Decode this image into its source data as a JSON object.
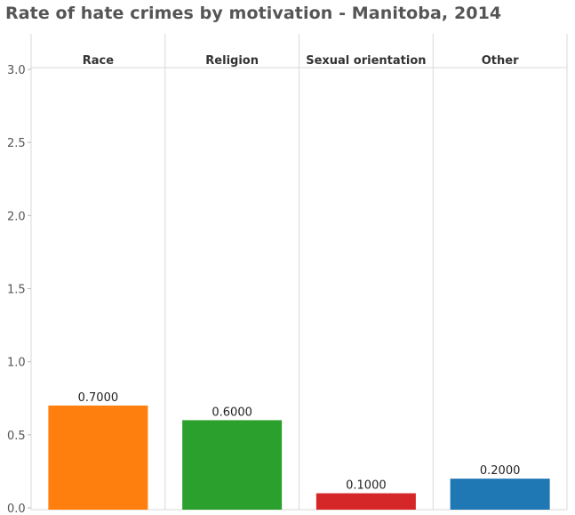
{
  "chart_data": {
    "type": "bar",
    "title": "Rate of hate crimes by motivation - Manitoba, 2014",
    "categories": [
      "Race",
      "Religion",
      "Sexual orientation",
      "Other"
    ],
    "values": [
      0.7,
      0.6,
      0.1,
      0.2
    ],
    "data_labels": [
      "0.7000",
      "0.6000",
      "0.1000",
      "0.2000"
    ],
    "colors": [
      "#ff7f0e",
      "#2ca02c",
      "#d62728",
      "#1f77b4"
    ],
    "ylim": [
      0,
      3.0
    ],
    "yticks": [
      0.0,
      0.5,
      1.0,
      1.5,
      2.0,
      2.5,
      3.0
    ],
    "ytick_labels": [
      "0.0",
      "0.5",
      "1.0",
      "1.5",
      "2.0",
      "2.5",
      "3.0"
    ],
    "xlabel": "",
    "ylabel": "",
    "grid": "vertical pane dividers",
    "legend": "none"
  }
}
